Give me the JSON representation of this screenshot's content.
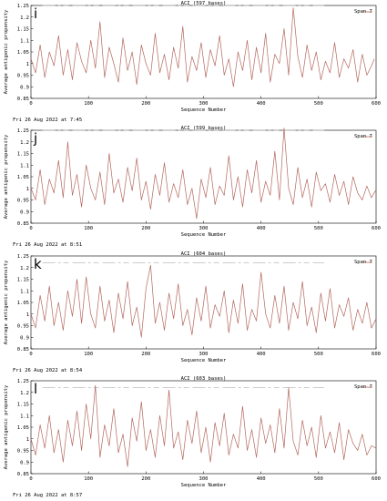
{
  "chart_data": [
    {
      "panel_label": "i",
      "type": "line",
      "title": "ACI (597 bases)",
      "xlabel": "Sequence Number",
      "ylabel": "Average antigenic propensity",
      "legend": "Span 7",
      "legend_placement": "top-right",
      "date": "Fri 26 Aug 2022 at 7:45",
      "xlim": [
        0,
        600
      ],
      "ylim": [
        0.85,
        1.25
      ],
      "xticks": [
        0,
        100,
        200,
        300,
        400,
        500,
        600
      ],
      "yticks": [
        0.85,
        0.9,
        0.95,
        1,
        1.05,
        1.1,
        1.15,
        1.2,
        1.25
      ],
      "ytick_labels": [
        "0.85",
        "0.9",
        "0.95",
        "1",
        "1.05",
        "1.1",
        "1.15",
        "1.2",
        "1.25"
      ],
      "threshold": 1.25,
      "line_color": "#b4675e",
      "series": [
        {
          "x": [
            0,
            8,
            16,
            24,
            32,
            40,
            48,
            56,
            64,
            72,
            80,
            88,
            96,
            104,
            112,
            120,
            128,
            136,
            144,
            152,
            160,
            168,
            176,
            184,
            192,
            200,
            208,
            216,
            224,
            232,
            240,
            248,
            256,
            264,
            272,
            280,
            288,
            296,
            304,
            312,
            320,
            328,
            336,
            344,
            352,
            360,
            368,
            376,
            384,
            392,
            400,
            408,
            416,
            424,
            432,
            440,
            448,
            456,
            464,
            472,
            480,
            488,
            496,
            504,
            512,
            520,
            528,
            536,
            544,
            552,
            560,
            568,
            576,
            584,
            592,
            597
          ],
          "values": [
            1.02,
            0.96,
            1.08,
            0.94,
            1.05,
            0.99,
            1.12,
            0.95,
            1.06,
            0.93,
            1.09,
            1.01,
            0.96,
            1.1,
            0.98,
            1.18,
            0.94,
            1.07,
            1.0,
            0.92,
            1.11,
            0.97,
            1.05,
            0.91,
            1.08,
            1.0,
            0.95,
            1.13,
            0.96,
            1.04,
            0.93,
            1.07,
            0.98,
            1.16,
            0.92,
            1.03,
            0.97,
            1.09,
            0.94,
            1.06,
            0.99,
            1.12,
            0.95,
            1.02,
            0.9,
            1.05,
            0.97,
            1.1,
            0.93,
            1.07,
            0.96,
            1.13,
            0.92,
            1.04,
            1.0,
            1.15,
            0.95,
            1.24,
            1.03,
            0.94,
            1.08,
            0.97,
            1.05,
            0.93,
            1.01,
            0.96,
            1.09,
            0.94,
            1.02,
            0.98,
            1.06,
            0.92,
            1.04,
            0.95,
            0.99,
            1.02
          ]
        }
      ]
    },
    {
      "panel_label": "j",
      "type": "line",
      "title": "ACI (599 bases)",
      "xlabel": "Sequence Number",
      "ylabel": "Average antigenic propensity",
      "legend": "Span 7",
      "legend_placement": "top-right",
      "date": "Fri 26 Aug 2022 at 8:51",
      "xlim": [
        0,
        600
      ],
      "ylim": [
        0.85,
        1.25
      ],
      "xticks": [
        0,
        100,
        200,
        300,
        400,
        500,
        600
      ],
      "yticks": [
        0.85,
        0.9,
        0.95,
        1,
        1.05,
        1.1,
        1.15,
        1.2,
        1.25
      ],
      "ytick_labels": [
        "0.85",
        "0.9",
        "0.95",
        "1",
        "1.05",
        "1.1",
        "1.15",
        "1.2",
        "1.25"
      ],
      "threshold": 1.25,
      "line_color": "#b4675e",
      "series": [
        {
          "x": [
            0,
            8,
            16,
            24,
            32,
            40,
            48,
            56,
            64,
            72,
            80,
            88,
            96,
            104,
            112,
            120,
            128,
            136,
            144,
            152,
            160,
            168,
            176,
            184,
            192,
            200,
            208,
            216,
            224,
            232,
            240,
            248,
            256,
            264,
            272,
            280,
            288,
            296,
            304,
            312,
            320,
            328,
            336,
            344,
            352,
            360,
            368,
            376,
            384,
            392,
            400,
            408,
            416,
            424,
            432,
            440,
            448,
            456,
            464,
            472,
            480,
            488,
            496,
            504,
            512,
            520,
            528,
            536,
            544,
            552,
            560,
            568,
            576,
            584,
            592,
            599
          ],
          "values": [
            1.0,
            0.95,
            1.08,
            0.93,
            1.04,
            0.98,
            1.12,
            0.96,
            1.2,
            0.97,
            1.06,
            0.92,
            1.1,
            1.0,
            0.95,
            1.07,
            0.93,
            1.15,
            0.98,
            1.04,
            0.94,
            1.09,
            0.99,
            1.13,
            0.95,
            1.03,
            0.91,
            1.06,
            0.97,
            1.11,
            0.94,
            1.02,
            0.96,
            1.08,
            0.93,
            1.0,
            0.87,
            1.04,
            0.96,
            1.09,
            0.93,
            1.01,
            0.97,
            1.14,
            0.95,
            1.05,
            0.92,
            1.08,
            0.98,
            1.12,
            0.94,
            1.03,
            0.97,
            1.16,
            0.95,
            1.26,
            1.0,
            0.93,
            1.09,
            0.96,
            1.04,
            0.92,
            1.07,
            0.99,
            1.02,
            0.94,
            1.06,
            0.97,
            1.03,
            0.93,
            1.05,
            0.98,
            0.95,
            1.01,
            0.96,
            0.99
          ]
        }
      ]
    },
    {
      "panel_label": "k",
      "type": "line",
      "title": "ACI (604 bases)",
      "xlabel": "Sequence Number",
      "ylabel": "Average antigenic propensity",
      "legend": "Span 7",
      "legend_placement": "top-right",
      "date": "Fri 26 Aug 2022 at 8:54",
      "xlim": [
        0,
        600
      ],
      "ylim": [
        0.85,
        1.25
      ],
      "xticks": [
        0,
        100,
        200,
        300,
        400,
        500,
        600
      ],
      "yticks": [
        0.85,
        0.9,
        0.95,
        1,
        1.05,
        1.1,
        1.15,
        1.2,
        1.25
      ],
      "ytick_labels": [
        "0.85",
        "0.9",
        "0.95",
        "1",
        "1.05",
        "1.1",
        "1.15",
        "1.2",
        "1.25"
      ],
      "threshold": 1.22,
      "line_color": "#b4675e",
      "series": [
        {
          "x": [
            0,
            8,
            16,
            24,
            32,
            40,
            48,
            56,
            64,
            72,
            80,
            88,
            96,
            104,
            112,
            120,
            128,
            136,
            144,
            152,
            160,
            168,
            176,
            184,
            192,
            200,
            208,
            216,
            224,
            232,
            240,
            248,
            256,
            264,
            272,
            280,
            288,
            296,
            304,
            312,
            320,
            328,
            336,
            344,
            352,
            360,
            368,
            376,
            384,
            392,
            400,
            408,
            416,
            424,
            432,
            440,
            448,
            456,
            464,
            472,
            480,
            488,
            496,
            504,
            512,
            520,
            528,
            536,
            544,
            552,
            560,
            568,
            576,
            584,
            592,
            600
          ],
          "values": [
            1.0,
            0.94,
            1.08,
            0.97,
            1.12,
            0.95,
            1.05,
            0.93,
            1.1,
            0.99,
            1.15,
            0.96,
            1.16,
            1.0,
            0.94,
            1.12,
            0.97,
            1.06,
            0.92,
            1.09,
            0.98,
            1.14,
            0.95,
            1.03,
            0.9,
            1.11,
            1.21,
            0.96,
            1.05,
            0.93,
            1.09,
            0.98,
            1.13,
            0.95,
            1.02,
            0.91,
            1.07,
            0.97,
            1.12,
            0.94,
            1.04,
            0.99,
            1.1,
            0.92,
            1.06,
            0.96,
            1.13,
            0.93,
            1.02,
            0.97,
            1.18,
            1.0,
            0.94,
            1.08,
            0.96,
            1.12,
            0.93,
            1.05,
            0.98,
            1.14,
            0.95,
            1.03,
            0.92,
            1.09,
            0.97,
            1.11,
            0.94,
            1.04,
            0.99,
            1.07,
            0.93,
            1.02,
            0.96,
            1.05,
            0.94,
            0.98
          ]
        }
      ]
    },
    {
      "panel_label": "l",
      "type": "line",
      "title": "ACI (603 bases)",
      "xlabel": "Sequence Number",
      "ylabel": "Average antigenic propensity",
      "legend": "Span 7",
      "legend_placement": "top-right",
      "date": "Fri 26 Aug 2022 at 8:57",
      "xlim": [
        0,
        600
      ],
      "ylim": [
        0.85,
        1.25
      ],
      "xticks": [
        0,
        100,
        200,
        300,
        400,
        500,
        600
      ],
      "yticks": [
        0.85,
        0.9,
        0.95,
        1,
        1.05,
        1.1,
        1.15,
        1.2,
        1.25
      ],
      "ytick_labels": [
        "0.85",
        "0.9",
        "0.95",
        "1",
        "1.05",
        "1.1",
        "1.15",
        "1.2",
        "1.25"
      ],
      "threshold": 1.22,
      "line_color": "#b4675e",
      "series": [
        {
          "x": [
            0,
            8,
            16,
            24,
            32,
            40,
            48,
            56,
            64,
            72,
            80,
            88,
            96,
            104,
            112,
            120,
            128,
            136,
            144,
            152,
            160,
            168,
            176,
            184,
            192,
            200,
            208,
            216,
            224,
            232,
            240,
            248,
            256,
            264,
            272,
            280,
            288,
            296,
            304,
            312,
            320,
            328,
            336,
            344,
            352,
            360,
            368,
            376,
            384,
            392,
            400,
            408,
            416,
            424,
            432,
            440,
            448,
            456,
            464,
            472,
            480,
            488,
            496,
            504,
            512,
            520,
            528,
            536,
            544,
            552,
            560,
            568,
            576,
            584,
            592,
            600
          ],
          "values": [
            1.0,
            0.93,
            1.06,
            0.96,
            1.1,
            0.94,
            1.04,
            0.9,
            1.08,
            0.97,
            1.12,
            0.95,
            1.15,
            1.0,
            1.23,
            0.92,
            1.06,
            0.97,
            1.13,
            0.94,
            1.02,
            0.88,
            1.09,
            0.99,
            1.16,
            0.95,
            1.04,
            0.92,
            1.1,
            0.97,
            1.21,
            0.96,
            1.03,
            0.91,
            1.08,
            0.98,
            1.12,
            0.94,
            1.05,
            0.9,
            1.07,
            0.97,
            1.11,
            0.93,
            1.02,
            0.96,
            1.14,
            0.95,
            1.04,
            0.92,
            1.09,
            0.98,
            1.06,
            0.94,
            1.13,
            0.96,
            1.22,
            0.99,
            0.93,
            1.08,
            0.97,
            1.05,
            0.92,
            1.1,
            0.96,
            1.03,
            0.94,
            1.07,
            0.91,
            1.04,
            0.98,
            0.95,
            1.02,
            0.93,
            0.97,
            0.96
          ]
        }
      ]
    }
  ]
}
